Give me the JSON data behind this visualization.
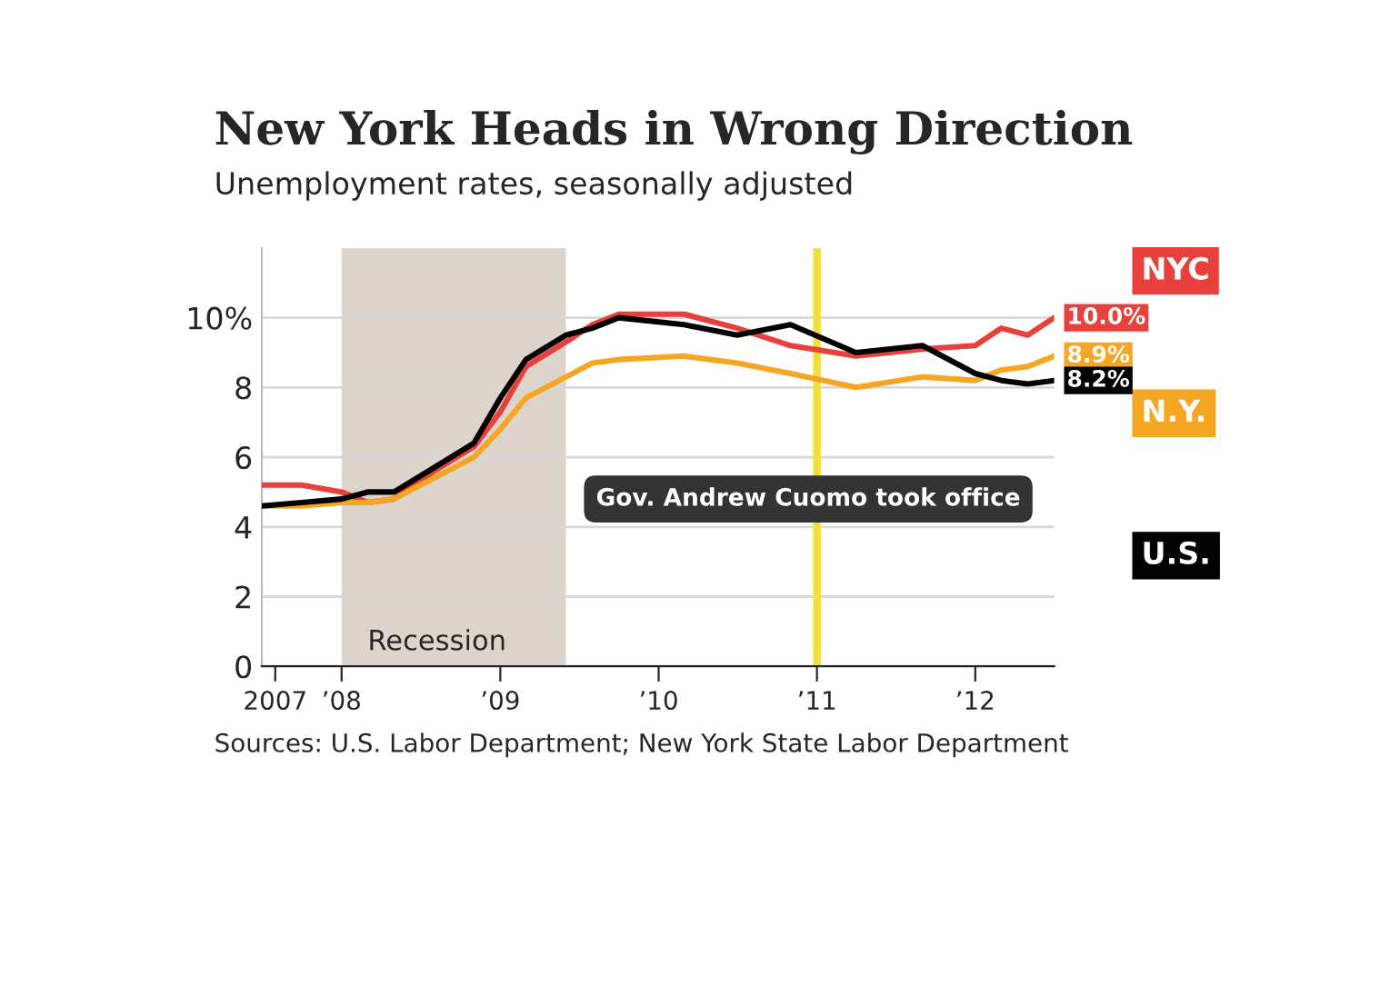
{
  "chart_data": {
    "type": "line",
    "title": "New York Heads in Wrong Direction",
    "subtitle": "Unemployment rates, seasonally adjusted",
    "x": [
      "2007-07",
      "2007-10",
      "2008-01",
      "2008-03",
      "2008-05",
      "2008-08",
      "2008-11",
      "2009-01",
      "2009-03",
      "2009-06",
      "2009-08",
      "2009-10",
      "2010-03",
      "2010-07",
      "2010-11",
      "2011-04",
      "2011-09",
      "2012-01",
      "2012-03",
      "2012-05",
      "2012-07"
    ],
    "series": [
      {
        "name": "NYC",
        "color": "#e8403c",
        "values": [
          5.2,
          5.2,
          5.0,
          4.7,
          4.8,
          5.6,
          6.3,
          7.3,
          8.6,
          9.3,
          9.8,
          10.1,
          10.1,
          9.7,
          9.2,
          8.9,
          9.1,
          9.2,
          9.7,
          9.5,
          10.0
        ],
        "value_labels": [
          null,
          null,
          null,
          null,
          null,
          null,
          null,
          null,
          null,
          null,
          null,
          null,
          null,
          null,
          null,
          null,
          null,
          null,
          null,
          null,
          "10.0%"
        ]
      },
      {
        "name": "N.Y.",
        "color": "#f5a623",
        "values": [
          4.6,
          4.6,
          4.7,
          4.7,
          4.8,
          5.4,
          6.0,
          6.8,
          7.7,
          8.3,
          8.7,
          8.8,
          8.9,
          8.7,
          8.4,
          8.0,
          8.3,
          8.2,
          8.5,
          8.6,
          8.9
        ],
        "value_labels": [
          null,
          null,
          null,
          null,
          null,
          null,
          null,
          null,
          null,
          null,
          null,
          null,
          null,
          null,
          null,
          null,
          null,
          null,
          null,
          null,
          "8.9%"
        ]
      },
      {
        "name": "U.S.",
        "color": "#000000",
        "values": [
          4.6,
          4.7,
          4.8,
          5.0,
          5.0,
          5.7,
          6.4,
          7.7,
          8.8,
          9.5,
          9.7,
          10.0,
          9.8,
          9.5,
          9.8,
          9.0,
          9.2,
          8.4,
          8.2,
          8.1,
          8.2
        ],
        "value_labels": [
          null,
          null,
          null,
          null,
          null,
          null,
          null,
          null,
          null,
          null,
          null,
          null,
          null,
          null,
          null,
          null,
          null,
          null,
          null,
          null,
          "8.2%"
        ]
      }
    ],
    "xlim": [
      "2007-07",
      "2012-07"
    ],
    "xticks": [
      {
        "value": "2007-08",
        "label": "2007"
      },
      {
        "value": "2008-01",
        "label": "’08"
      },
      {
        "value": "2009-01",
        "label": "’09"
      },
      {
        "value": "2010-01",
        "label": "’10"
      },
      {
        "value": "2011-01",
        "label": "’11"
      },
      {
        "value": "2012-01",
        "label": "’12"
      }
    ],
    "ylim": [
      0,
      12
    ],
    "yticks": [
      0,
      2,
      4,
      6,
      8,
      {
        "value": 10,
        "label": "10%"
      }
    ],
    "grid": "y",
    "legend": "right",
    "bands": [
      {
        "axis": "x",
        "from": "2008-01",
        "to": "2009-06",
        "label": "Recession",
        "color": "#ddd5cc"
      }
    ],
    "ref_lines": [
      {
        "axis": "x",
        "value": "2011-01",
        "label": "Gov. Andrew Cuomo took office",
        "color": "#f2e03a"
      }
    ],
    "annotations": [
      "Sources: U.S. Labor Department; New York State Labor Department"
    ]
  }
}
